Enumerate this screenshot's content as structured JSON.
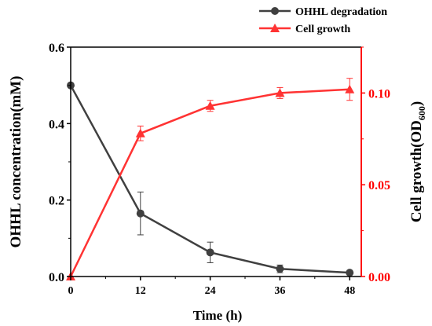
{
  "chart_data": {
    "type": "line",
    "xlabel": "Time (h)",
    "x": [
      0,
      12,
      24,
      36,
      48
    ],
    "xlim": [
      0,
      50
    ],
    "x_ticks": [
      "0",
      "12",
      "24",
      "36",
      "48"
    ],
    "y_left": {
      "label": "OHHL concentration(mM)",
      "lim": [
        0,
        0.6
      ],
      "ticks": [
        "0.0",
        "0.2",
        "0.4",
        "0.6"
      ],
      "color": "#000000"
    },
    "y_right": {
      "label_main": "Cell growth(OD",
      "label_sub": "600",
      "label_end": ")",
      "lim": [
        0,
        0.125
      ],
      "ticks": [
        "0.00",
        "0.05",
        "0.10"
      ],
      "color": "#ff0000"
    },
    "series": [
      {
        "name": "OHHL degradation",
        "axis": "left",
        "marker": "circle",
        "color": "#404040",
        "values": [
          0.5,
          0.165,
          0.063,
          0.02,
          0.01
        ],
        "errors": [
          0,
          0.056,
          0.027,
          0.01,
          0.004
        ]
      },
      {
        "name": "Cell growth",
        "axis": "right",
        "marker": "triangle",
        "color": "#ff3333",
        "values": [
          0,
          0.078,
          0.093,
          0.1,
          0.102
        ],
        "errors": [
          0,
          0.004,
          0.003,
          0.003,
          0.006
        ]
      }
    ],
    "legend_position": "top-right",
    "grid": false
  }
}
